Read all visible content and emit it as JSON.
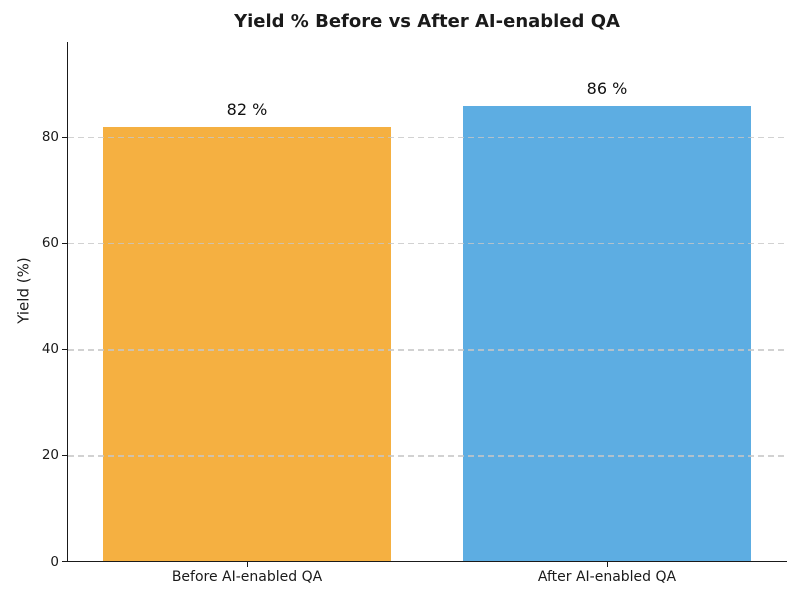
{
  "chart_data": {
    "type": "bar",
    "title": "Yield % Before vs After AI-enabled QA",
    "ylabel": "Yield (%)",
    "xlabel": "",
    "categories": [
      "Before AI-enabled QA",
      "After AI-enabled QA"
    ],
    "values": [
      82,
      86
    ],
    "bar_labels": [
      "82 %",
      "86 %"
    ],
    "bar_colors": [
      "#F5B041",
      "#5DADE2"
    ],
    "yticks": [
      0,
      20,
      40,
      60,
      80
    ],
    "ylim": [
      0,
      98
    ],
    "grid": "horizontal-dashed",
    "gridline_color": "#c6c6c6",
    "axis_color": "#1a1a1a",
    "background": "#ffffff",
    "legend": "none"
  }
}
